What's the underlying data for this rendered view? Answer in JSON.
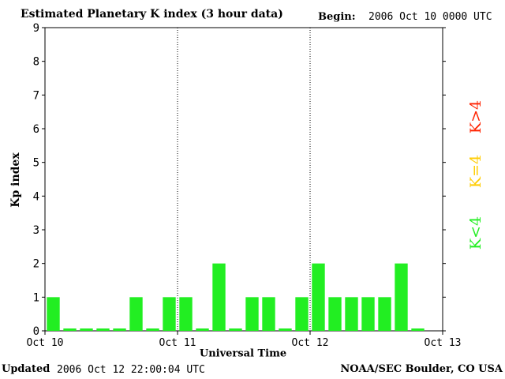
{
  "header": {
    "title": "Estimated Planetary K index (3 hour data)",
    "begin_label": "Begin:",
    "begin_value": "2006 Oct 10 0000 UTC"
  },
  "footer": {
    "updated_label": "Updated",
    "updated_value": "2006 Oct 12 22:00:04 UTC",
    "credit": "NOAA/SEC Boulder, CO USA"
  },
  "legend": [
    {
      "label": "K<4",
      "color": "#22ee22"
    },
    {
      "label": "K=4",
      "color": "#ffcc00"
    },
    {
      "label": "K>4",
      "color": "#ff2200"
    }
  ],
  "chart_data": {
    "type": "bar",
    "title": "Estimated Planetary K index (3 hour data)",
    "xlabel": "Universal Time",
    "ylabel": "Kp index",
    "ylim": [
      0,
      9
    ],
    "yticks": [
      0,
      1,
      2,
      3,
      4,
      5,
      6,
      7,
      8,
      9
    ],
    "x_tick_labels": [
      "Oct 10",
      "Oct 11",
      "Oct 12",
      "Oct 13"
    ],
    "day_separators": [
      "Oct 11",
      "Oct 12"
    ],
    "bar_color": "#22ee22",
    "values": [
      1,
      0,
      0,
      0,
      0,
      1,
      0,
      1,
      1,
      0,
      2,
      0,
      1,
      1,
      0,
      1,
      2,
      1,
      1,
      1,
      1,
      2,
      0
    ]
  }
}
